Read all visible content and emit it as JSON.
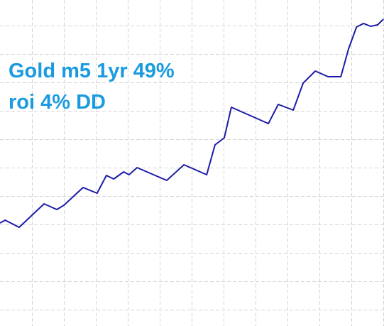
{
  "chart_data": {
    "type": "line",
    "annotations": [
      "Gold m5 1yr 49%",
      "roi 4% DD"
    ],
    "annotation_color": "#1a9be0",
    "x": [
      0,
      0.16,
      0.6,
      1.38,
      1.78,
      2.0,
      2.6,
      3.04,
      3.33,
      3.56,
      3.87,
      4.04,
      4.29,
      5.22,
      5.76,
      6.47,
      6.73,
      7.02,
      7.24,
      8.4,
      8.71,
      9.18,
      9.49,
      9.87,
      10.27,
      10.67,
      10.91,
      11.16,
      11.38,
      11.6,
      11.82,
      12.0
    ],
    "values": [
      3.05,
      3.15,
      2.9,
      3.725,
      3.525,
      3.675,
      4.3,
      4.1,
      4.725,
      4.6,
      4.85,
      4.75,
      5.0,
      4.55,
      5.1,
      4.75,
      5.8,
      6.05,
      7.125,
      6.55,
      7.225,
      7.025,
      7.975,
      8.4,
      8.2,
      8.2,
      9.175,
      9.95,
      10.075,
      9.975,
      10.025,
      10.225
    ],
    "color": "#1c1ca8",
    "xlim": [
      0,
      12.02
    ],
    "ylim": [
      -0.575,
      10.9
    ],
    "xticks": [
      1,
      2,
      3,
      4,
      5,
      6,
      7,
      8,
      9,
      10,
      11,
      12
    ],
    "yticks": [
      0,
      1,
      2,
      3,
      4,
      5,
      6,
      7,
      8,
      9,
      10
    ],
    "grid": true
  }
}
